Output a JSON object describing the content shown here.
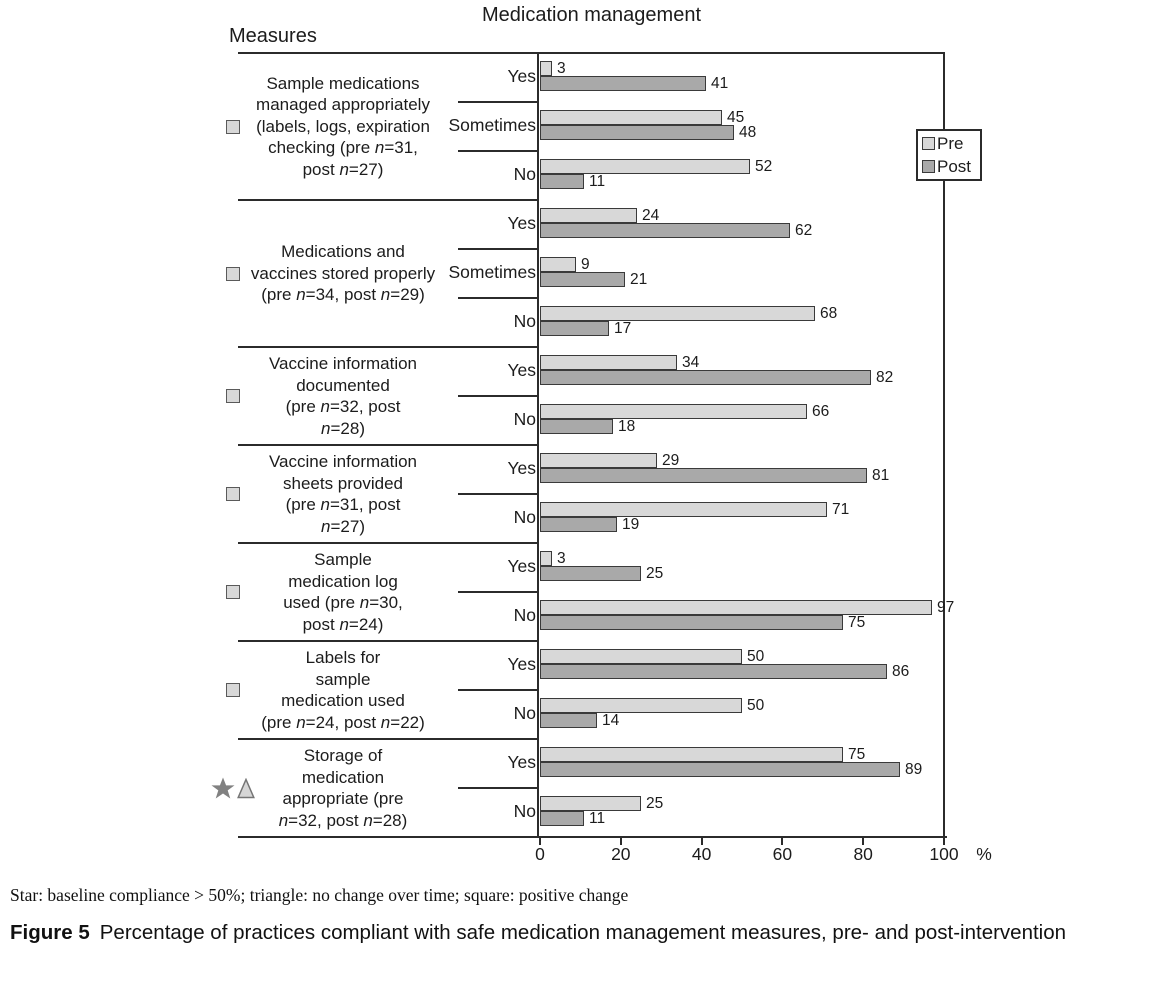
{
  "figure": {
    "title": "Medication management",
    "measures_heading": "Measures",
    "footnote": "Star: baseline compliance > 50%; triangle: no change over time; square: positive change",
    "caption_label": "Figure 5",
    "caption_text": "Percentage of practices compliant with safe medication management measures, pre- and post-intervention"
  },
  "legend": {
    "pre": "Pre",
    "post": "Post"
  },
  "colors": {
    "pre_fill": "#d8d8d8",
    "post_fill": "#a9a9a9",
    "line": "#2b2b2b",
    "star_fill": "#818181",
    "triangle_fill": "#d6d6d6",
    "triangle_stroke": "#757575"
  },
  "chart_data": {
    "type": "bar",
    "orientation": "horizontal",
    "title": "Medication management",
    "xlabel": "%",
    "xlim": [
      0,
      100
    ],
    "x_ticks": [
      0,
      20,
      40,
      60,
      80,
      100
    ],
    "grid": false,
    "legend": [
      "Pre",
      "Post"
    ],
    "legend_position": "right",
    "series_colors": {
      "Pre": "#d8d8d8",
      "Post": "#a9a9a9"
    },
    "groups": [
      {
        "measure": "Sample medications managed appropriately (labels, logs, expiration checking (pre n=31, post n=27)",
        "label_lines": [
          "Sample medications",
          "managed appropriately",
          "(labels, logs, expiration",
          "checking (pre n=31,",
          "post n=27)"
        ],
        "symbols": [
          "square"
        ],
        "rows": [
          {
            "category": "Yes",
            "pre": 3,
            "post": 41
          },
          {
            "category": "Sometimes",
            "pre": 45,
            "post": 48
          },
          {
            "category": "No",
            "pre": 52,
            "post": 11
          }
        ]
      },
      {
        "measure": "Medications and vaccines stored properly (pre n=34, post n=29)",
        "label_lines": [
          "Medications and",
          "vaccines stored properly",
          "(pre n=34, post n=29)"
        ],
        "symbols": [
          "square"
        ],
        "rows": [
          {
            "category": "Yes",
            "pre": 24,
            "post": 62
          },
          {
            "category": "Sometimes",
            "pre": 9,
            "post": 21
          },
          {
            "category": "No",
            "pre": 68,
            "post": 17
          }
        ]
      },
      {
        "measure": "Vaccine information documented (pre n=32, post n=28)",
        "label_lines": [
          "Vaccine information",
          "documented",
          "(pre n=32, post",
          "n=28)"
        ],
        "symbols": [
          "square"
        ],
        "rows": [
          {
            "category": "Yes",
            "pre": 34,
            "post": 82
          },
          {
            "category": "No",
            "pre": 66,
            "post": 18
          }
        ]
      },
      {
        "measure": "Vaccine information sheets provided (pre n=31, post n=27)",
        "label_lines": [
          "Vaccine information",
          "sheets provided",
          "(pre n=31, post",
          "n=27)"
        ],
        "symbols": [
          "square"
        ],
        "rows": [
          {
            "category": "Yes",
            "pre": 29,
            "post": 81
          },
          {
            "category": "No",
            "pre": 71,
            "post": 19
          }
        ]
      },
      {
        "measure": "Sample medication log used (pre n=30, post n=24)",
        "label_lines": [
          "Sample",
          "medication log",
          "used (pre n=30,",
          "post n=24)"
        ],
        "symbols": [
          "square"
        ],
        "rows": [
          {
            "category": "Yes",
            "pre": 3,
            "post": 25
          },
          {
            "category": "No",
            "pre": 97,
            "post": 75
          }
        ]
      },
      {
        "measure": "Labels for sample medication used (pre n=24, post n=22)",
        "label_lines": [
          "Labels for",
          "sample",
          "medication used",
          "(pre n=24, post n=22)"
        ],
        "symbols": [
          "square"
        ],
        "rows": [
          {
            "category": "Yes",
            "pre": 50,
            "post": 86
          },
          {
            "category": "No",
            "pre": 50,
            "post": 14
          }
        ]
      },
      {
        "measure": "Storage of medication appropriate (pre n=32, post n=28)",
        "label_lines": [
          "Storage of",
          "medication",
          "appropriate (pre",
          "n=32, post n=28)"
        ],
        "symbols": [
          "star",
          "triangle"
        ],
        "rows": [
          {
            "category": "Yes",
            "pre": 75,
            "post": 89
          },
          {
            "category": "No",
            "pre": 25,
            "post": 11
          }
        ]
      }
    ]
  }
}
